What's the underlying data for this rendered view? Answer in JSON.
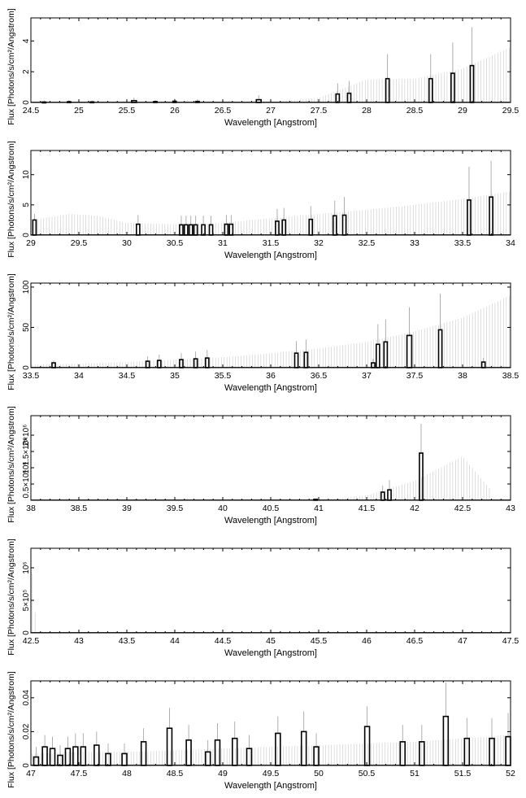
{
  "chart_data": [
    {
      "type": "bar",
      "xlabel": "Wavelength [Angstrom]",
      "ylabel": "Flux [Photons/s/cm²/Angstrom]",
      "xlim": [
        24.5,
        29.5
      ],
      "ylim": [
        0,
        5.5
      ],
      "xticks": [
        "24.5",
        "25",
        "25.5",
        "26",
        "26.5",
        "27",
        "27.5",
        "28",
        "28.5",
        "29",
        "29.5"
      ],
      "yticks": [
        {
          "v": 0,
          "label": "0"
        },
        {
          "v": 2,
          "label": "2"
        },
        {
          "v": 4,
          "label": "4"
        }
      ],
      "bars": [
        {
          "x": 24.62,
          "w": 0.035,
          "y": 0.03,
          "err": 0.1
        },
        {
          "x": 24.88,
          "w": 0.035,
          "y": 0.05,
          "err": 0.1
        },
        {
          "x": 25.12,
          "w": 0.035,
          "y": 0.04,
          "err": 0.1
        },
        {
          "x": 25.55,
          "w": 0.05,
          "y": 0.12,
          "err": 0.2
        },
        {
          "x": 25.78,
          "w": 0.035,
          "y": 0.06,
          "err": 0.1
        },
        {
          "x": 25.98,
          "w": 0.035,
          "y": 0.08,
          "err": 0.15
        },
        {
          "x": 26.22,
          "w": 0.035,
          "y": 0.07,
          "err": 0.15
        },
        {
          "x": 26.85,
          "w": 0.05,
          "y": 0.18,
          "err": 0.3
        },
        {
          "x": 27.68,
          "w": 0.035,
          "y": 0.55,
          "err": 0.7
        },
        {
          "x": 27.8,
          "w": 0.035,
          "y": 0.6,
          "err": 0.8
        },
        {
          "x": 28.2,
          "w": 0.035,
          "y": 1.55,
          "err": 1.6
        },
        {
          "x": 28.65,
          "w": 0.035,
          "y": 1.55,
          "err": 1.6
        },
        {
          "x": 28.88,
          "w": 0.035,
          "y": 1.9,
          "err": 2.0
        },
        {
          "x": 29.08,
          "w": 0.035,
          "y": 2.4,
          "err": 2.5
        }
      ],
      "envelope": [
        [
          24.5,
          0.02
        ],
        [
          27.0,
          0.05
        ],
        [
          27.5,
          0.3
        ],
        [
          28.0,
          1.5
        ],
        [
          28.5,
          1.55
        ],
        [
          29.0,
          2.2
        ],
        [
          29.5,
          3.6
        ]
      ]
    },
    {
      "type": "bar",
      "xlabel": "Wavelength [Angstrom]",
      "ylabel": "Flux [Photons/s/cm²/Angstrom]",
      "xlim": [
        29,
        34
      ],
      "ylim": [
        0,
        14
      ],
      "xticks": [
        "29",
        "29.5",
        "30",
        "30.5",
        "31",
        "31.5",
        "32",
        "32.5",
        "33",
        "33.5",
        "34"
      ],
      "yticks": [
        {
          "v": 0,
          "label": "0"
        },
        {
          "v": 5,
          "label": "5"
        },
        {
          "v": 10,
          "label": "10"
        }
      ],
      "bars": [
        {
          "x": 29.02,
          "w": 0.035,
          "y": 2.5,
          "err": 1.0
        },
        {
          "x": 30.1,
          "w": 0.035,
          "y": 1.8,
          "err": 1.5
        },
        {
          "x": 30.55,
          "w": 0.035,
          "y": 1.7,
          "err": 1.5
        },
        {
          "x": 30.6,
          "w": 0.035,
          "y": 1.7,
          "err": 1.5
        },
        {
          "x": 30.65,
          "w": 0.035,
          "y": 1.7,
          "err": 1.5
        },
        {
          "x": 30.7,
          "w": 0.035,
          "y": 1.7,
          "err": 1.5
        },
        {
          "x": 30.78,
          "w": 0.035,
          "y": 1.7,
          "err": 1.5
        },
        {
          "x": 30.86,
          "w": 0.035,
          "y": 1.7,
          "err": 1.5
        },
        {
          "x": 31.02,
          "w": 0.035,
          "y": 1.8,
          "err": 1.5
        },
        {
          "x": 31.07,
          "w": 0.035,
          "y": 1.8,
          "err": 1.5
        },
        {
          "x": 31.55,
          "w": 0.035,
          "y": 2.3,
          "err": 2.0
        },
        {
          "x": 31.62,
          "w": 0.035,
          "y": 2.5,
          "err": 2.0
        },
        {
          "x": 31.9,
          "w": 0.035,
          "y": 2.6,
          "err": 2.2
        },
        {
          "x": 32.15,
          "w": 0.035,
          "y": 3.2,
          "err": 2.5
        },
        {
          "x": 32.25,
          "w": 0.035,
          "y": 3.3,
          "err": 3.0
        },
        {
          "x": 33.55,
          "w": 0.035,
          "y": 5.8,
          "err": 5.5
        },
        {
          "x": 33.78,
          "w": 0.035,
          "y": 6.3,
          "err": 6.0
        }
      ],
      "envelope": [
        [
          29.0,
          2.5
        ],
        [
          29.4,
          3.5
        ],
        [
          29.7,
          3.2
        ],
        [
          30.0,
          2.0
        ],
        [
          30.5,
          1.8
        ],
        [
          31.0,
          2.0
        ],
        [
          31.5,
          2.8
        ],
        [
          32.0,
          3.5
        ],
        [
          32.5,
          4.2
        ],
        [
          33.0,
          5.0
        ],
        [
          33.5,
          6.0
        ],
        [
          34.0,
          7.2
        ]
      ]
    },
    {
      "type": "bar",
      "xlabel": "Wavelength [Angstrom]",
      "ylabel": "Flux [Photons/s/cm²/Angstrom]",
      "xlim": [
        33.5,
        38.5
      ],
      "ylim": [
        0,
        105
      ],
      "xticks": [
        "33.5",
        "34",
        "34.5",
        "35",
        "35.5",
        "36",
        "36.5",
        "37",
        "37.5",
        "38",
        "38.5"
      ],
      "yticks": [
        {
          "v": 0,
          "label": "0"
        },
        {
          "v": 50,
          "label": "50"
        },
        {
          "v": 100,
          "label": "100"
        }
      ],
      "bars": [
        {
          "x": 33.72,
          "w": 0.035,
          "y": 6,
          "err": 3
        },
        {
          "x": 34.7,
          "w": 0.035,
          "y": 8,
          "err": 6
        },
        {
          "x": 34.82,
          "w": 0.035,
          "y": 9,
          "err": 7
        },
        {
          "x": 35.05,
          "w": 0.035,
          "y": 10,
          "err": 8
        },
        {
          "x": 35.2,
          "w": 0.035,
          "y": 11,
          "err": 9
        },
        {
          "x": 35.32,
          "w": 0.035,
          "y": 12,
          "err": 10
        },
        {
          "x": 36.25,
          "w": 0.035,
          "y": 18,
          "err": 15
        },
        {
          "x": 36.35,
          "w": 0.035,
          "y": 19,
          "err": 16
        },
        {
          "x": 37.05,
          "w": 0.035,
          "y": 6,
          "err": 5
        },
        {
          "x": 37.1,
          "w": 0.035,
          "y": 29,
          "err": 25
        },
        {
          "x": 37.18,
          "w": 0.035,
          "y": 32,
          "err": 28
        },
        {
          "x": 37.42,
          "w": 0.05,
          "y": 40,
          "err": 35
        },
        {
          "x": 37.75,
          "w": 0.035,
          "y": 47,
          "err": 45
        },
        {
          "x": 38.2,
          "w": 0.035,
          "y": 7,
          "err": 5
        }
      ],
      "envelope": [
        [
          33.5,
          4
        ],
        [
          34.0,
          5
        ],
        [
          34.5,
          7
        ],
        [
          35.0,
          10
        ],
        [
          35.5,
          13
        ],
        [
          36.0,
          18
        ],
        [
          36.5,
          24
        ],
        [
          37.0,
          32
        ],
        [
          37.5,
          45
        ],
        [
          38.0,
          62
        ],
        [
          38.5,
          90
        ]
      ]
    },
    {
      "type": "bar",
      "xlabel": "Wavelength [Angstrom]",
      "ylabel": "Flux [Photons/s/cm²/Angstrom]",
      "xlim": [
        38,
        43
      ],
      "ylim": [
        0,
        2600000
      ],
      "xticks": [
        "38",
        "38.5",
        "39",
        "39.5",
        "40",
        "40.5",
        "41",
        "41.5",
        "42",
        "42.5",
        "43"
      ],
      "yticks": [
        {
          "v": 500000,
          "label": "0.5×10⁶"
        },
        {
          "v": 1000000,
          "label": "10⁶"
        },
        {
          "v": 1500000,
          "label": "1.5×10⁶"
        },
        {
          "v": 2000000,
          "label": "2×10⁶"
        }
      ],
      "bars": [
        {
          "x": 40.95,
          "w": 0.035,
          "y": 30000,
          "err": 20000
        },
        {
          "x": 41.65,
          "w": 0.035,
          "y": 250000,
          "err": 200000
        },
        {
          "x": 41.72,
          "w": 0.035,
          "y": 320000,
          "err": 300000
        },
        {
          "x": 42.05,
          "w": 0.035,
          "y": 1450000,
          "err": 900000
        }
      ],
      "envelope": [
        [
          38.0,
          0
        ],
        [
          41.0,
          15000
        ],
        [
          41.5,
          150000
        ],
        [
          42.0,
          600000
        ],
        [
          42.5,
          1350000
        ],
        [
          42.8,
          300000
        ]
      ]
    },
    {
      "type": "bar",
      "xlabel": "Wavelength [Angstrom]",
      "ylabel": "Flux [Photons/s/cm²/Angstrom]",
      "xlim": [
        42.5,
        47.5
      ],
      "ylim": [
        0,
        1300000
      ],
      "xticks": [
        "42.5",
        "43",
        "43.5",
        "44",
        "44.5",
        "45",
        "45.5",
        "46",
        "46.5",
        "47",
        "47.5"
      ],
      "yticks": [
        {
          "v": 0,
          "label": "0"
        },
        {
          "v": 500000,
          "label": "5×10⁵"
        },
        {
          "v": 1000000,
          "label": "10⁶"
        }
      ],
      "bars": [],
      "envelope": [
        [
          42.5,
          1200000
        ],
        [
          42.56,
          0
        ]
      ]
    },
    {
      "type": "bar",
      "xlabel": "Wavelength [Angstrom]",
      "ylabel": "Flux [Photons/s/cm²/Angstrom]",
      "xlim": [
        47,
        52
      ],
      "ylim": [
        0,
        0.05
      ],
      "xticks": [
        "47",
        "47.5",
        "48",
        "48.5",
        "49",
        "49.5",
        "50",
        "50.5",
        "51",
        "51.5",
        "52"
      ],
      "yticks": [
        {
          "v": 0,
          "label": "0"
        },
        {
          "v": 0.02,
          "label": "0.02"
        },
        {
          "v": 0.04,
          "label": "0.04"
        }
      ],
      "bars": [
        {
          "x": 47.03,
          "w": 0.05,
          "y": 0.005,
          "err": 0.006
        },
        {
          "x": 47.12,
          "w": 0.05,
          "y": 0.011,
          "err": 0.007
        },
        {
          "x": 47.2,
          "w": 0.05,
          "y": 0.01,
          "err": 0.007
        },
        {
          "x": 47.28,
          "w": 0.05,
          "y": 0.006,
          "err": 0.006
        },
        {
          "x": 47.36,
          "w": 0.05,
          "y": 0.01,
          "err": 0.007
        },
        {
          "x": 47.44,
          "w": 0.05,
          "y": 0.011,
          "err": 0.008
        },
        {
          "x": 47.52,
          "w": 0.05,
          "y": 0.011,
          "err": 0.008
        },
        {
          "x": 47.66,
          "w": 0.05,
          "y": 0.012,
          "err": 0.008
        },
        {
          "x": 47.78,
          "w": 0.05,
          "y": 0.007,
          "err": 0.006
        },
        {
          "x": 47.95,
          "w": 0.05,
          "y": 0.007,
          "err": 0.006
        },
        {
          "x": 48.15,
          "w": 0.05,
          "y": 0.014,
          "err": 0.008
        },
        {
          "x": 48.42,
          "w": 0.05,
          "y": 0.022,
          "err": 0.012
        },
        {
          "x": 48.62,
          "w": 0.05,
          "y": 0.015,
          "err": 0.009
        },
        {
          "x": 48.82,
          "w": 0.05,
          "y": 0.008,
          "err": 0.007
        },
        {
          "x": 48.92,
          "w": 0.05,
          "y": 0.015,
          "err": 0.01
        },
        {
          "x": 49.1,
          "w": 0.05,
          "y": 0.016,
          "err": 0.01
        },
        {
          "x": 49.25,
          "w": 0.05,
          "y": 0.01,
          "err": 0.008
        },
        {
          "x": 49.55,
          "w": 0.05,
          "y": 0.019,
          "err": 0.01
        },
        {
          "x": 49.82,
          "w": 0.05,
          "y": 0.02,
          "err": 0.012
        },
        {
          "x": 49.95,
          "w": 0.05,
          "y": 0.011,
          "err": 0.008
        },
        {
          "x": 50.48,
          "w": 0.05,
          "y": 0.023,
          "err": 0.012
        },
        {
          "x": 50.85,
          "w": 0.05,
          "y": 0.014,
          "err": 0.01
        },
        {
          "x": 51.05,
          "w": 0.05,
          "y": 0.014,
          "err": 0.01
        },
        {
          "x": 51.3,
          "w": 0.05,
          "y": 0.029,
          "err": 0.02
        },
        {
          "x": 51.52,
          "w": 0.05,
          "y": 0.016,
          "err": 0.012
        },
        {
          "x": 51.78,
          "w": 0.05,
          "y": 0.016,
          "err": 0.012
        },
        {
          "x": 51.95,
          "w": 0.05,
          "y": 0.017,
          "err": 0.014
        }
      ],
      "envelope": [
        [
          47.0,
          0.007
        ],
        [
          47.5,
          0.008
        ],
        [
          48.0,
          0.008
        ],
        [
          48.5,
          0.009
        ],
        [
          49.0,
          0.01
        ],
        [
          49.5,
          0.011
        ],
        [
          50.0,
          0.012
        ],
        [
          50.5,
          0.013
        ],
        [
          51.0,
          0.014
        ],
        [
          51.5,
          0.016
        ],
        [
          52.0,
          0.018
        ]
      ]
    }
  ]
}
